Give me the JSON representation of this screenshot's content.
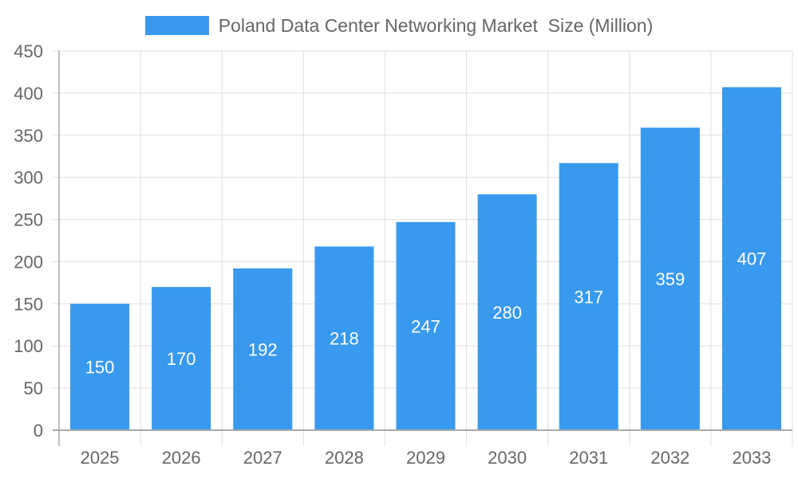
{
  "legend": {
    "label": "Poland Data Center Networking Market  Size (Million)",
    "color": "#3899EE"
  },
  "colors": {
    "bar": "#3899EE",
    "bar_label": "#FFFFFF",
    "grid": "#E0E0E0",
    "axis": "#AAAAAA",
    "tick_text": "#666666"
  },
  "chart_data": {
    "type": "bar",
    "title": "",
    "xlabel": "",
    "ylabel": "",
    "categories": [
      "2025",
      "2026",
      "2027",
      "2028",
      "2029",
      "2030",
      "2031",
      "2032",
      "2033"
    ],
    "series": [
      {
        "name": "Poland Data Center Networking Market  Size (Million)",
        "values": [
          150,
          170,
          192,
          218,
          247,
          280,
          317,
          359,
          407
        ]
      }
    ],
    "ylim": [
      0,
      450
    ],
    "yticks": [
      0,
      50,
      100,
      150,
      200,
      250,
      300,
      350,
      400,
      450
    ],
    "grid": true,
    "legend_position": "top",
    "data_labels": true
  }
}
